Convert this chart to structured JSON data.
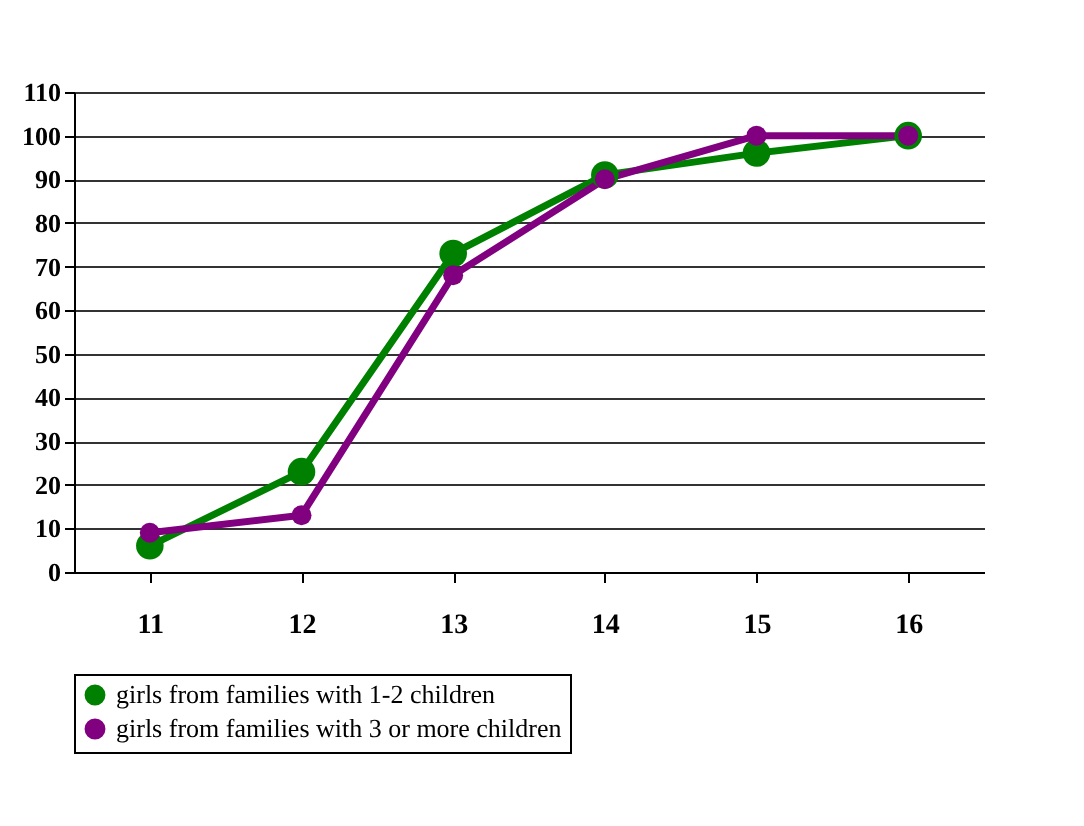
{
  "chart_data": {
    "type": "line",
    "categories": [
      "11",
      "12",
      "13",
      "14",
      "15",
      "16"
    ],
    "series": [
      {
        "name": "girls from families with 1-2 children",
        "color": "#008000",
        "values": [
          6,
          23,
          73,
          91,
          96,
          100
        ]
      },
      {
        "name": "girls from families with 3 or more children",
        "color": "#800080",
        "values": [
          9,
          13,
          68,
          90,
          100,
          100
        ]
      }
    ],
    "ylim": [
      0,
      110
    ],
    "yticks": [
      0,
      10,
      20,
      30,
      40,
      50,
      60,
      70,
      80,
      90,
      100,
      110
    ],
    "grid": "y",
    "legend": "bottom",
    "marker": "circle",
    "line_style": "solid"
  }
}
